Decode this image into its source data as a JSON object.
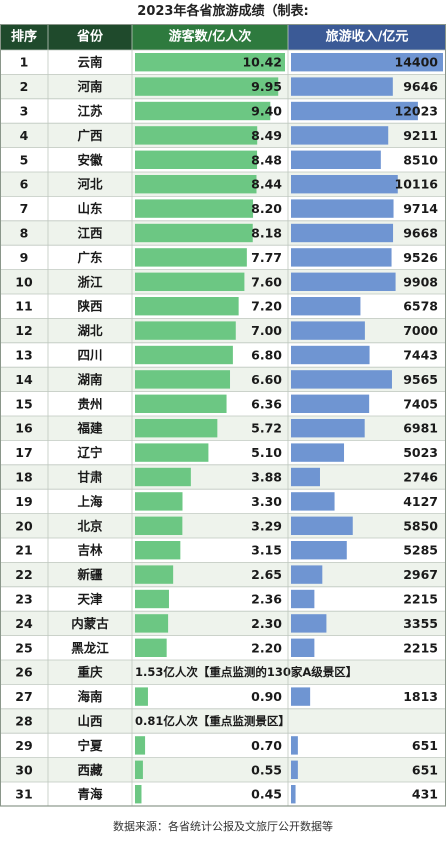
{
  "title": "2023年各省旅游成绩（制表:",
  "footer": "数据来源：各省统计公报及文旅厅公开数据等",
  "colors": {
    "header_bg": "#1f4a2c",
    "header_col3_bg": "#2e7a3e",
    "header_col4_bg": "#3b5a96",
    "green_bar": "#6cc783",
    "blue_bar": "#6f95d2",
    "row_alt": "#eef3ec",
    "grid": "#bfc8bf"
  },
  "chart_data": {
    "type": "table",
    "columns": [
      "排序",
      "省份",
      "游客数/亿人次",
      "旅游收入/亿元"
    ],
    "visitors_max": 10.42,
    "revenue_max": 14400,
    "rows": [
      {
        "rank": "1",
        "province": "云南",
        "visitors": 10.42,
        "visitors_label": "10.42",
        "revenue": 14400,
        "revenue_label": "14400"
      },
      {
        "rank": "2",
        "province": "河南",
        "visitors": 9.95,
        "visitors_label": "9.95",
        "revenue": 9646,
        "revenue_label": "9646"
      },
      {
        "rank": "3",
        "province": "江苏",
        "visitors": 9.4,
        "visitors_label": "9.40",
        "revenue": 12023,
        "revenue_label": "12023"
      },
      {
        "rank": "4",
        "province": "广西",
        "visitors": 8.49,
        "visitors_label": "8.49",
        "revenue": 9211,
        "revenue_label": "9211"
      },
      {
        "rank": "5",
        "province": "安徽",
        "visitors": 8.48,
        "visitors_label": "8.48",
        "revenue": 8510,
        "revenue_label": "8510"
      },
      {
        "rank": "6",
        "province": "河北",
        "visitors": 8.44,
        "visitors_label": "8.44",
        "revenue": 10116,
        "revenue_label": "10116"
      },
      {
        "rank": "7",
        "province": "山东",
        "visitors": 8.2,
        "visitors_label": "8.20",
        "revenue": 9714,
        "revenue_label": "9714"
      },
      {
        "rank": "8",
        "province": "江西",
        "visitors": 8.18,
        "visitors_label": "8.18",
        "revenue": 9668,
        "revenue_label": "9668"
      },
      {
        "rank": "9",
        "province": "广东",
        "visitors": 7.77,
        "visitors_label": "7.77",
        "revenue": 9526,
        "revenue_label": "9526"
      },
      {
        "rank": "10",
        "province": "浙江",
        "visitors": 7.6,
        "visitors_label": "7.60",
        "revenue": 9908,
        "revenue_label": "9908"
      },
      {
        "rank": "11",
        "province": "陕西",
        "visitors": 7.2,
        "visitors_label": "7.20",
        "revenue": 6578,
        "revenue_label": "6578"
      },
      {
        "rank": "12",
        "province": "湖北",
        "visitors": 7.0,
        "visitors_label": "7.00",
        "revenue": 7000,
        "revenue_label": "7000"
      },
      {
        "rank": "13",
        "province": "四川",
        "visitors": 6.8,
        "visitors_label": "6.80",
        "revenue": 7443,
        "revenue_label": "7443"
      },
      {
        "rank": "14",
        "province": "湖南",
        "visitors": 6.6,
        "visitors_label": "6.60",
        "revenue": 9565,
        "revenue_label": "9565"
      },
      {
        "rank": "15",
        "province": "贵州",
        "visitors": 6.36,
        "visitors_label": "6.36",
        "revenue": 7405,
        "revenue_label": "7405"
      },
      {
        "rank": "16",
        "province": "福建",
        "visitors": 5.72,
        "visitors_label": "5.72",
        "revenue": 6981,
        "revenue_label": "6981"
      },
      {
        "rank": "17",
        "province": "辽宁",
        "visitors": 5.1,
        "visitors_label": "5.10",
        "revenue": 5023,
        "revenue_label": "5023"
      },
      {
        "rank": "18",
        "province": "甘肃",
        "visitors": 3.88,
        "visitors_label": "3.88",
        "revenue": 2746,
        "revenue_label": "2746"
      },
      {
        "rank": "19",
        "province": "上海",
        "visitors": 3.3,
        "visitors_label": "3.30",
        "revenue": 4127,
        "revenue_label": "4127"
      },
      {
        "rank": "20",
        "province": "北京",
        "visitors": 3.29,
        "visitors_label": "3.29",
        "revenue": 5850,
        "revenue_label": "5850"
      },
      {
        "rank": "21",
        "province": "吉林",
        "visitors": 3.15,
        "visitors_label": "3.15",
        "revenue": 5285,
        "revenue_label": "5285"
      },
      {
        "rank": "22",
        "province": "新疆",
        "visitors": 2.65,
        "visitors_label": "2.65",
        "revenue": 2967,
        "revenue_label": "2967"
      },
      {
        "rank": "23",
        "province": "天津",
        "visitors": 2.36,
        "visitors_label": "2.36",
        "revenue": 2215,
        "revenue_label": "2215"
      },
      {
        "rank": "24",
        "province": "内蒙古",
        "visitors": 2.3,
        "visitors_label": "2.30",
        "revenue": 3355,
        "revenue_label": "3355"
      },
      {
        "rank": "25",
        "province": "黑龙江",
        "visitors": 2.2,
        "visitors_label": "2.20",
        "revenue": 2215,
        "revenue_label": "2215"
      },
      {
        "rank": "26",
        "province": "重庆",
        "note": "1.53亿人次【重点监测的130家A级景区】"
      },
      {
        "rank": "27",
        "province": "海南",
        "visitors": 0.9,
        "visitors_label": "0.90",
        "revenue": 1813,
        "revenue_label": "1813"
      },
      {
        "rank": "28",
        "province": "山西",
        "note": "0.81亿人次【重点监测景区】"
      },
      {
        "rank": "29",
        "province": "宁夏",
        "visitors": 0.7,
        "visitors_label": "0.70",
        "revenue": 651,
        "revenue_label": "651"
      },
      {
        "rank": "30",
        "province": "西藏",
        "visitors": 0.55,
        "visitors_label": "0.55",
        "revenue": 651,
        "revenue_label": "651"
      },
      {
        "rank": "31",
        "province": "青海",
        "visitors": 0.45,
        "visitors_label": "0.45",
        "revenue": 431,
        "revenue_label": "431"
      }
    ]
  }
}
